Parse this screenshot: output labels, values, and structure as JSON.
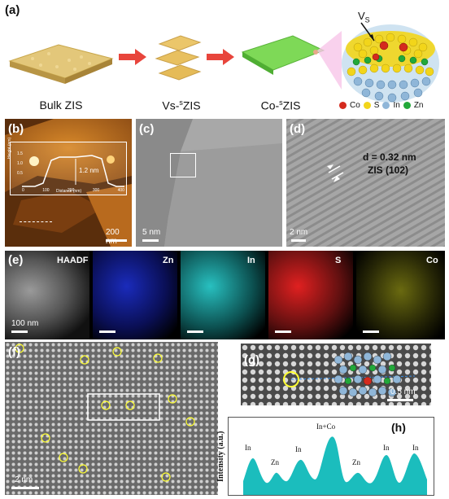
{
  "panel_labels": {
    "a": "(a)",
    "b": "(b)",
    "c": "(c)",
    "d": "(d)",
    "e": "(e)",
    "f": "(f)",
    "g": "(g)",
    "h": "(h)"
  },
  "a": {
    "captions": {
      "bulk": "Bulk ZIS",
      "vs_pre": "Vs-",
      "vs_sup": "s",
      "vs_post": "ZIS",
      "co_pre": "Co-",
      "co_sup": "s",
      "co_post": "ZIS"
    },
    "vs_label": "V",
    "vs_sub": "S",
    "legend": [
      {
        "label": "Co",
        "color": "#d42a1e"
      },
      {
        "label": "S",
        "color": "#f2d51a"
      },
      {
        "label": "In",
        "color": "#8fb6d8"
      },
      {
        "label": "Zn",
        "color": "#22a83a"
      }
    ]
  },
  "b": {
    "inset_ylabel": "Height (nm)",
    "inset_xlabel": "Distance (nm)",
    "inset_yticks": [
      "1.5",
      "1.0",
      "0.5",
      "0.0"
    ],
    "inset_xticks": [
      "0",
      "100",
      "200",
      "300",
      "400"
    ],
    "height_annotation": "1.2 nm",
    "scale": "200 nm"
  },
  "c": {
    "scale": "5 nm"
  },
  "d": {
    "d_spacing": "d = 0.32 nm",
    "plane": "ZIS (102)",
    "scale": "2 nm"
  },
  "e": {
    "labels": [
      "HAADF",
      "Zn",
      "In",
      "S",
      "Co"
    ],
    "colors": [
      "#b8b8b8",
      "#2233dd",
      "#33cccc",
      "#ee2222",
      "#dddd22"
    ],
    "scale": "100 nm"
  },
  "f": {
    "scale": "2 nm"
  },
  "g": {
    "scale": "0.5 nm"
  },
  "h": {
    "ylabel": "Intensity (a.u.)",
    "peaks": [
      "In",
      "Zn",
      "In",
      "In+Co",
      "Zn",
      "In",
      "In"
    ],
    "fill": "#1bbdbd"
  }
}
